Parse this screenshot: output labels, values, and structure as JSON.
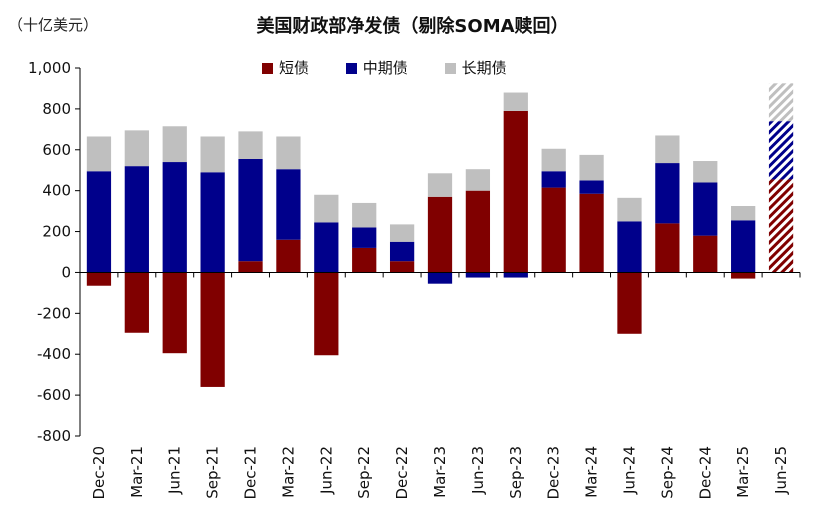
{
  "chart_data": {
    "type": "bar",
    "stacked": true,
    "title": "美国财政部净发债（剔除SOMA赎回）",
    "unit_label": "（十亿美元）",
    "categories": [
      "Dec-20",
      "Mar-21",
      "Jun-21",
      "Sep-21",
      "Dec-21",
      "Mar-22",
      "Jun-22",
      "Sep-22",
      "Dec-22",
      "Mar-23",
      "Jun-23",
      "Sep-23",
      "Dec-23",
      "Mar-24",
      "Jun-24",
      "Sep-24",
      "Dec-24",
      "Mar-25",
      "Jun-25"
    ],
    "series": [
      {
        "name": "短债",
        "color": "#800000",
        "values": [
          -65,
          -295,
          -395,
          -560,
          55,
          160,
          -405,
          120,
          55,
          370,
          400,
          790,
          415,
          385,
          -300,
          240,
          180,
          -30,
          455
        ]
      },
      {
        "name": "中期债",
        "color": "#00008B",
        "values": [
          495,
          520,
          540,
          490,
          500,
          345,
          245,
          100,
          95,
          -55,
          -25,
          -25,
          80,
          65,
          250,
          295,
          260,
          255,
          285
        ]
      },
      {
        "name": "长期债",
        "color": "#BFBFBF",
        "values": [
          170,
          175,
          175,
          175,
          135,
          160,
          135,
          120,
          85,
          115,
          105,
          90,
          110,
          125,
          115,
          135,
          105,
          70,
          185
        ]
      }
    ],
    "projected_categories": [
      "Jun-25"
    ],
    "ylim": [
      -800,
      1000
    ],
    "yticks": [
      -800,
      -600,
      -400,
      -200,
      0,
      200,
      400,
      600,
      800,
      1000
    ],
    "ytick_labels": [
      "-800",
      "-600",
      "-400",
      "-200",
      "0",
      "200",
      "400",
      "600",
      "800",
      "1,000"
    ],
    "xlabel": "",
    "ylabel": "",
    "legend_position": "top-center"
  }
}
